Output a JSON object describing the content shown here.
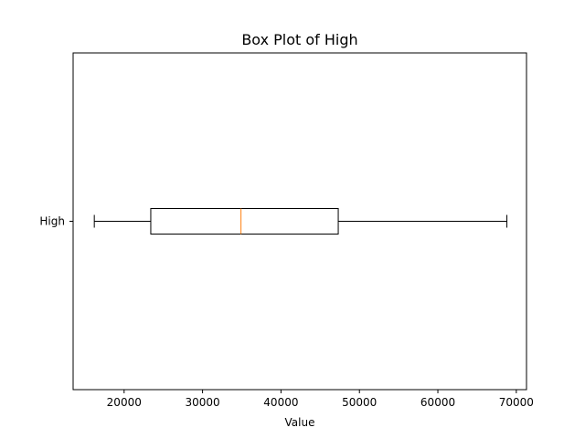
{
  "chart_data": {
    "type": "boxplot",
    "orientation": "horizontal",
    "title": "Box Plot of High",
    "xlabel": "Value",
    "ylabel": "",
    "xlim": [
      13500,
      71300
    ],
    "xticks": [
      20000,
      30000,
      40000,
      50000,
      60000,
      70000
    ],
    "xtick_labels": [
      "20000",
      "30000",
      "40000",
      "50000",
      "60000",
      "70000"
    ],
    "grid": false,
    "series": [
      {
        "name": "High",
        "whisker_low": 16200,
        "q1": 23400,
        "median": 34900,
        "q3": 47300,
        "whisker_high": 68800
      }
    ],
    "colors": {
      "box": "#000000",
      "median": "#ff7f0e"
    }
  }
}
